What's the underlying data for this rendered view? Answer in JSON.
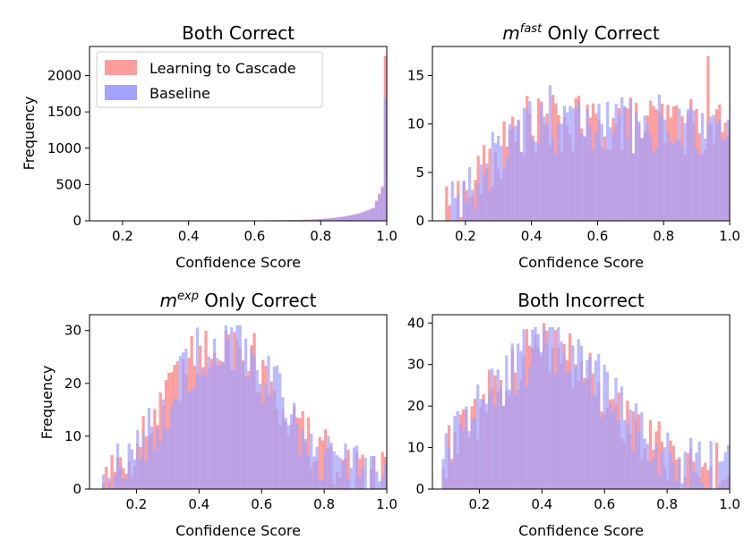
{
  "figure": {
    "colors": {
      "learning_to_cascade": "#ff9d9d",
      "baseline": "#a3a3ff",
      "overlap": "#a580d0"
    },
    "legend": {
      "entries": [
        "Learning to Cascade",
        "Baseline"
      ],
      "location": "upper left of top-left panel"
    }
  },
  "chart_data": [
    {
      "type": "histogram",
      "title": "Both Correct",
      "xlabel": "Confidence Score",
      "ylabel": "Frequency",
      "xlim": [
        0.1,
        1.0
      ],
      "ylim": [
        0,
        2400
      ],
      "xticks": [
        "0.2",
        "0.4",
        "0.6",
        "0.8",
        "1.0"
      ],
      "xtick_values": [
        0.2,
        0.4,
        0.6,
        0.8,
        1.0
      ],
      "yticks": [
        "0",
        "500",
        "1000",
        "1500",
        "2000"
      ],
      "ytick_values": [
        0,
        500,
        1000,
        1500,
        2000
      ],
      "series": [
        {
          "name": "Learning to Cascade",
          "bins": [
            [
              0.98,
              1.0
            ]
          ],
          "values": [
            2270
          ]
        },
        {
          "name": "Baseline",
          "bins": [
            [
              0.98,
              1.0
            ]
          ],
          "values": [
            1690
          ]
        }
      ]
    },
    {
      "type": "histogram",
      "title_parts": {
        "var": "m",
        "sup": "fast",
        "rest": " Only Correct"
      },
      "xlabel": "Confidence Score",
      "ylabel": "",
      "xlim": [
        0.1,
        1.0
      ],
      "ylim": [
        0,
        18
      ],
      "xticks": [
        "0.2",
        "0.4",
        "0.6",
        "0.8",
        "1.0"
      ],
      "xtick_values": [
        0.2,
        0.4,
        0.6,
        0.8,
        1.0
      ],
      "yticks": [
        "0",
        "5",
        "10",
        "15"
      ],
      "ytick_values": [
        0,
        5,
        10,
        15
      ],
      "series": [
        {
          "name": "Learning to Cascade",
          "peak_x": 0.93,
          "peak_value": 17
        },
        {
          "name": "Baseline",
          "peak_x": 0.45,
          "peak_value": 14
        }
      ]
    },
    {
      "type": "histogram",
      "title_parts": {
        "var": "m",
        "sup": "exp",
        "rest": " Only Correct"
      },
      "xlabel": "Confidence Score",
      "ylabel": "Frequency",
      "xlim": [
        0.05,
        1.0
      ],
      "ylim": [
        0,
        33
      ],
      "xticks": [
        "0.2",
        "0.4",
        "0.6",
        "0.8",
        "1.0"
      ],
      "xtick_values": [
        0.2,
        0.4,
        0.6,
        0.8,
        1.0
      ],
      "yticks": [
        "0",
        "10",
        "20",
        "30"
      ],
      "ytick_values": [
        0,
        10,
        20,
        30
      ],
      "series": [
        {
          "name": "Learning to Cascade",
          "peak_x": 0.42,
          "peak_value": 30
        },
        {
          "name": "Baseline",
          "peak_x": 0.53,
          "peak_value": 31
        }
      ]
    },
    {
      "type": "histogram",
      "title": "Both Incorrect",
      "xlabel": "Confidence Score",
      "ylabel": "",
      "xlim": [
        0.05,
        1.0
      ],
      "ylim": [
        0,
        42
      ],
      "xticks": [
        "0.2",
        "0.4",
        "0.6",
        "0.8",
        "1.0"
      ],
      "xtick_values": [
        0.2,
        0.4,
        0.6,
        0.8,
        1.0
      ],
      "yticks": [
        "0",
        "10",
        "20",
        "30",
        "40"
      ],
      "ytick_values": [
        0,
        10,
        20,
        30,
        40
      ],
      "series": [
        {
          "name": "Learning to Cascade",
          "peak_x": 0.4,
          "peak_value": 40
        },
        {
          "name": "Baseline",
          "peak_x": 0.42,
          "peak_value": 39
        }
      ]
    }
  ]
}
